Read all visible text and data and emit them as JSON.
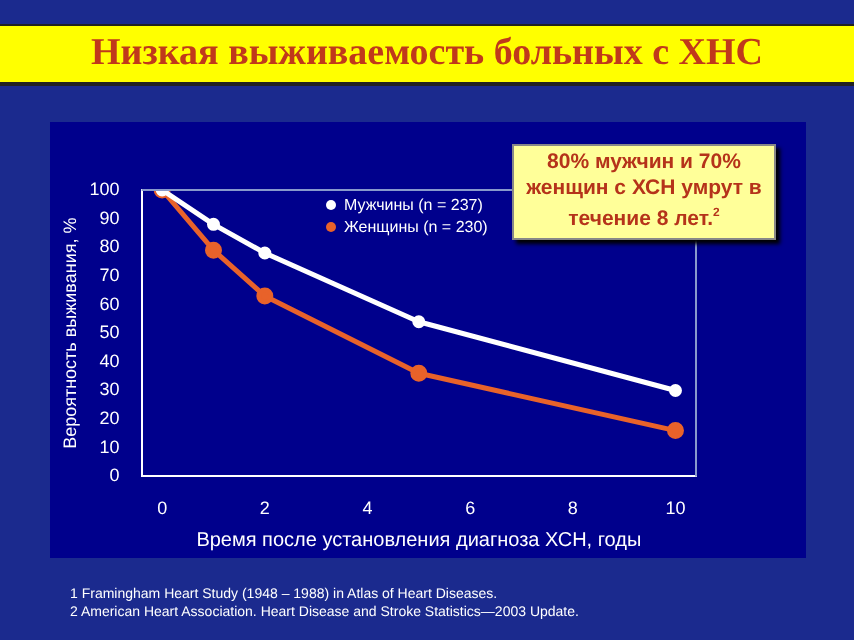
{
  "chart_data": {
    "type": "line",
    "title": "Низкая выживаемость больных с ХНС",
    "xlabel": "Время после установления диагноза ХСН, годы",
    "ylabel": "Вероятность выживания, %",
    "x": [
      0,
      1,
      2,
      5,
      10
    ],
    "series": [
      {
        "name": "Мужчины (n = 237)",
        "color": "#ffffff",
        "values": [
          100,
          88,
          78,
          54,
          30
        ]
      },
      {
        "name": "Женщины (n = 230)",
        "color": "#e8622a",
        "values": [
          100,
          79,
          63,
          36,
          16
        ]
      }
    ],
    "xlim": [
      -0.4,
      10.4
    ],
    "xticks": [
      0,
      2,
      4,
      6,
      8,
      10
    ],
    "ylim": [
      0,
      100
    ],
    "yticks": [
      0,
      10,
      20,
      30,
      40,
      50,
      60,
      70,
      80,
      90,
      100
    ],
    "grid": false,
    "legend": "top right",
    "marker": "circle",
    "line_style": "solid",
    "annotations": [
      "80% мужчин и 70% женщин с ХСН умрут в течение 8 лет.$^{2}$",
      "1 Framingham Heart Study (1948 – 1988) in Atlas of Heart Diseases.",
      "2 American Heart Association. Heart Disease and Stroke Statistics—2003 Update."
    ]
  }
}
